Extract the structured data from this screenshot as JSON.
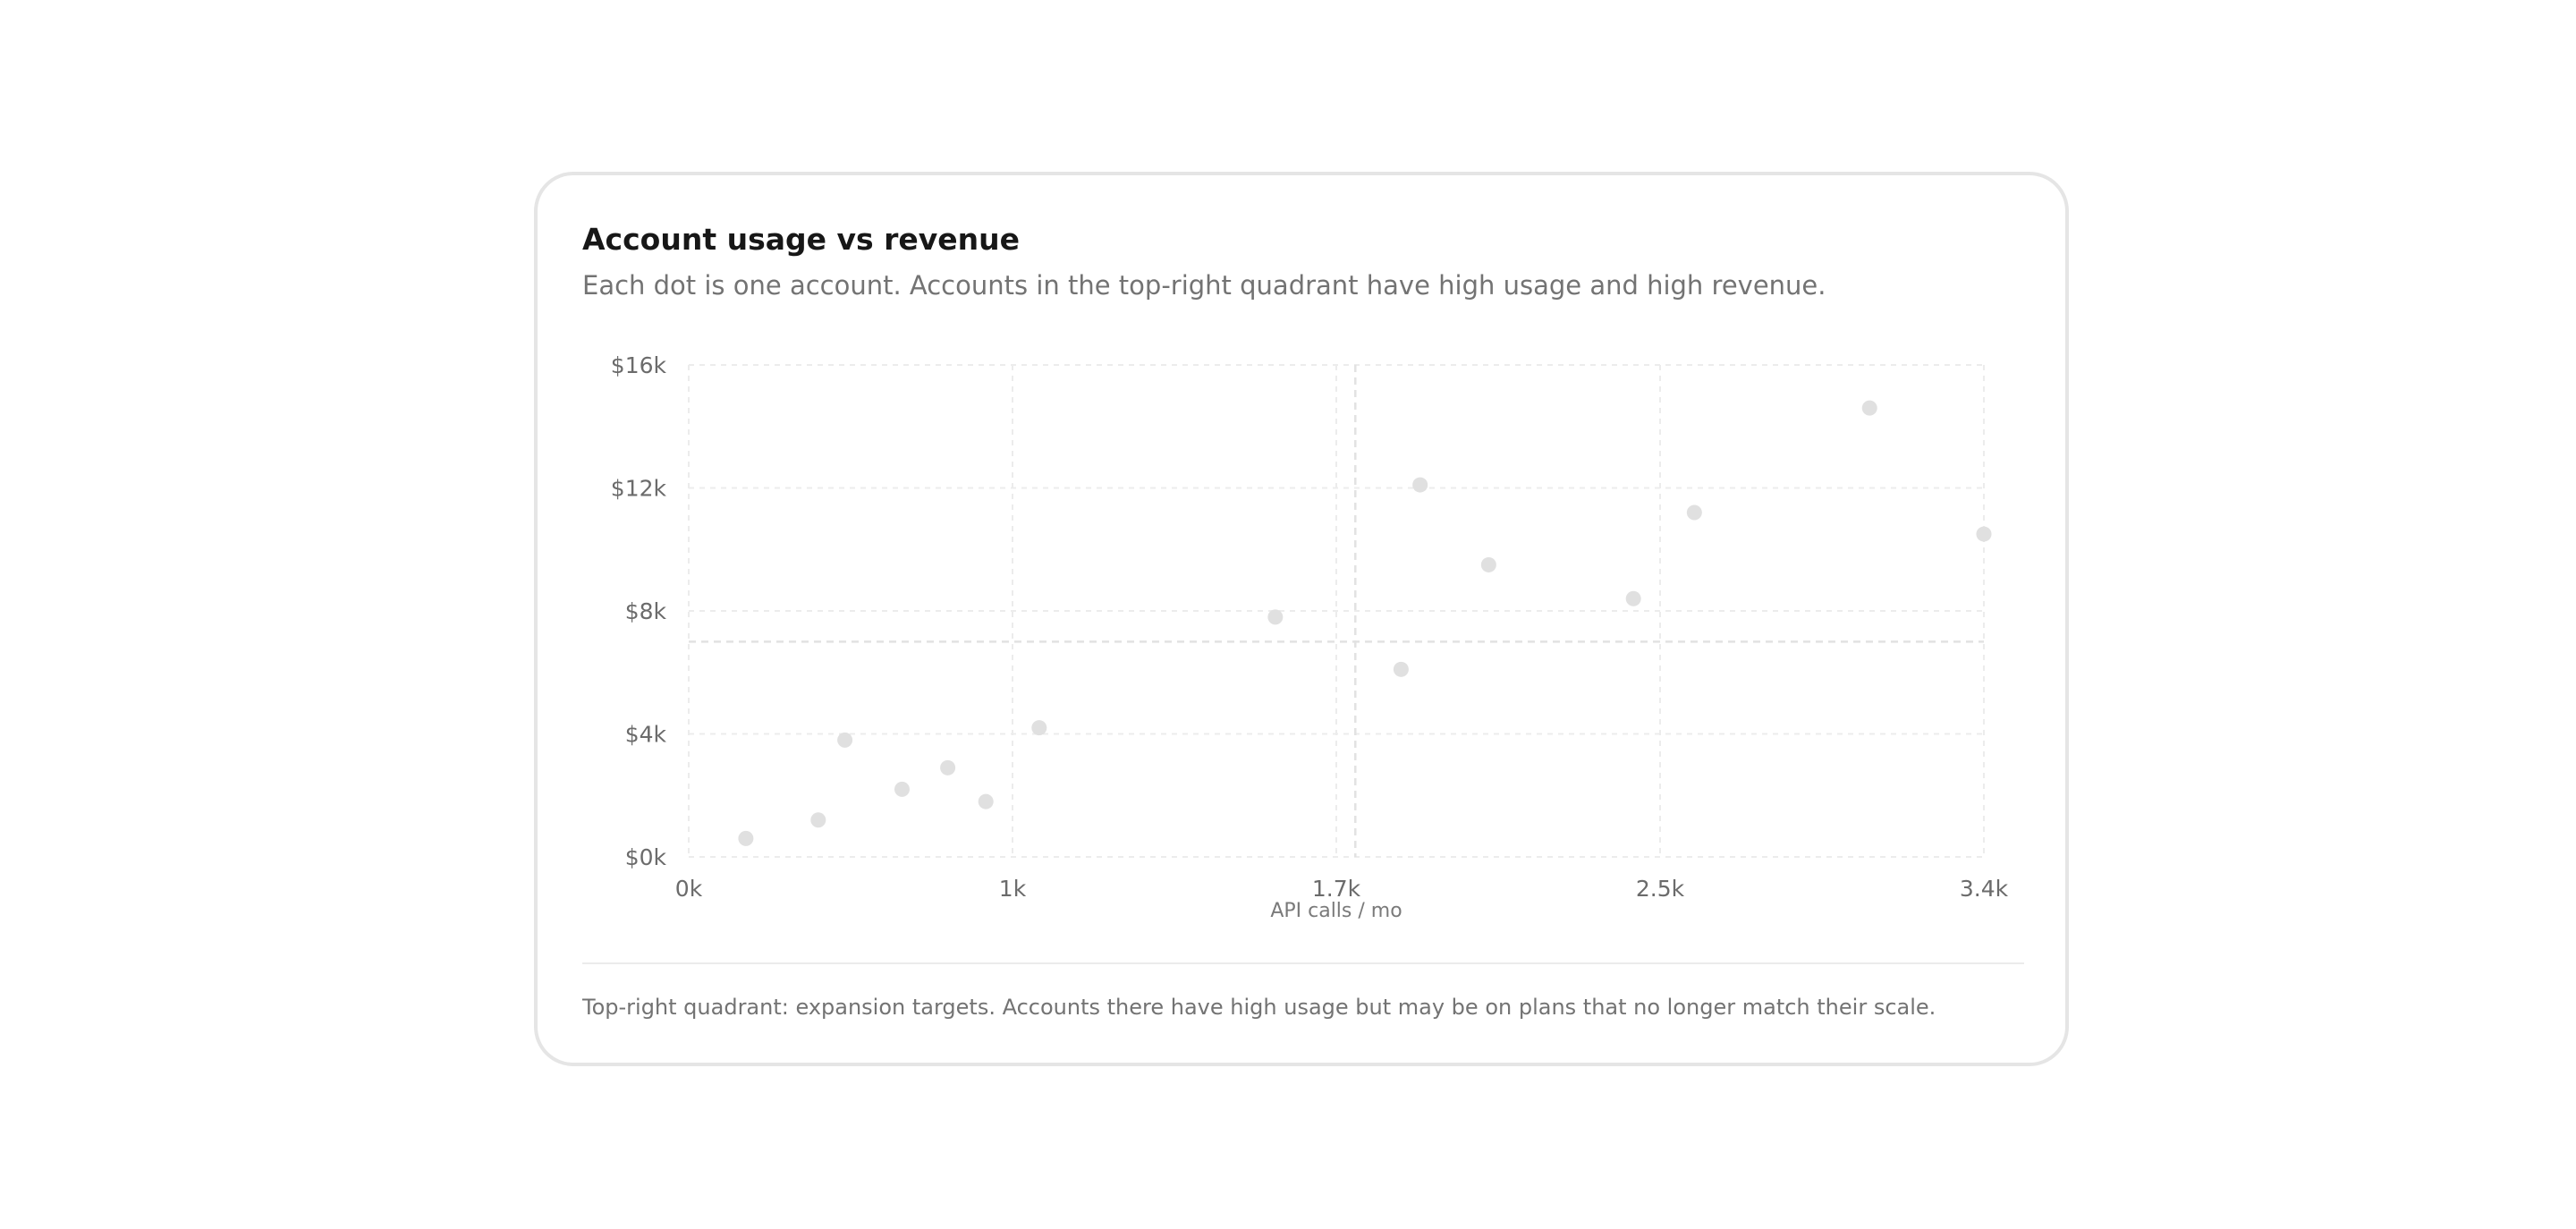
{
  "card": {
    "title": "Account usage vs revenue",
    "subtitle": "Each dot is one account. Accounts in the top-right quadrant have high usage and high revenue.",
    "footnote": "Top-right quadrant: expansion targets. Accounts there have high usage but may be on plans that no longer match their scale."
  },
  "chart_data": {
    "type": "scatter",
    "title": "Account usage vs revenue",
    "subtitle": "Each dot is one account. Accounts in the top-right quadrant have high usage and high revenue.",
    "xlabel": "API calls / mo",
    "ylabel": "",
    "xlim": [
      0,
      3400
    ],
    "ylim": [
      0,
      16000
    ],
    "x_ticks": [
      0,
      850,
      1700,
      2550,
      3400
    ],
    "x_tick_labels": [
      "0k",
      "1k",
      "1.7k",
      "2.5k",
      "3.4k"
    ],
    "y_ticks": [
      0,
      4000,
      8000,
      12000,
      16000
    ],
    "y_tick_labels": [
      "$0k",
      "$4k",
      "$8k",
      "$12k",
      "$16k"
    ],
    "grid": true,
    "quadrant_lines": {
      "x": 1750,
      "y": 7000
    },
    "point_color": "#e0e0e0",
    "grid_color": "#ececec",
    "quadrant_color": "#e2e2e2",
    "points": [
      {
        "x": 150,
        "y": 600
      },
      {
        "x": 340,
        "y": 1200
      },
      {
        "x": 410,
        "y": 3800
      },
      {
        "x": 560,
        "y": 2200
      },
      {
        "x": 680,
        "y": 2900
      },
      {
        "x": 780,
        "y": 1800
      },
      {
        "x": 920,
        "y": 4200
      },
      {
        "x": 1540,
        "y": 7800
      },
      {
        "x": 1870,
        "y": 6100
      },
      {
        "x": 1920,
        "y": 12100
      },
      {
        "x": 2100,
        "y": 9500
      },
      {
        "x": 2480,
        "y": 8400
      },
      {
        "x": 2640,
        "y": 11200
      },
      {
        "x": 3100,
        "y": 14600
      },
      {
        "x": 3400,
        "y": 10500
      }
    ],
    "annotations": [
      "Top-right quadrant: expansion targets. Accounts there have high usage but may be on plans that no longer match their scale."
    ]
  }
}
